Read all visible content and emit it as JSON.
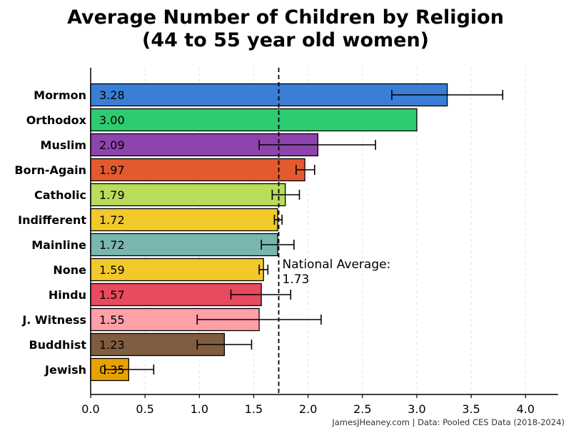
{
  "chart_data": {
    "type": "bar",
    "orientation": "horizontal",
    "title_line1": "Average Number of Children by Religion",
    "title_line2": "(44 to 55 year old women)",
    "categories": [
      "Mormon",
      "Orthodox",
      "Muslim",
      "Born-Again",
      "Catholic",
      "Indifferent",
      "Mainline",
      "None",
      "Hindu",
      "J. Witness",
      "Buddhist",
      "Jewish"
    ],
    "values": [
      3.28,
      3.0,
      2.09,
      1.97,
      1.79,
      1.72,
      1.72,
      1.59,
      1.57,
      1.55,
      1.23,
      0.35
    ],
    "value_labels": [
      "3.28",
      "3.00",
      "2.09",
      "1.97",
      "1.79",
      "1.72",
      "1.72",
      "1.59",
      "1.57",
      "1.55",
      "1.23",
      "0.35"
    ],
    "error_low": [
      2.77,
      3.0,
      1.55,
      1.89,
      1.67,
      1.69,
      1.57,
      1.55,
      1.29,
      0.98,
      0.98,
      0.13
    ],
    "error_high": [
      3.79,
      3.0,
      2.62,
      2.06,
      1.92,
      1.76,
      1.87,
      1.63,
      1.84,
      2.12,
      1.48,
      0.58
    ],
    "colors": [
      "#3a7fd5",
      "#2ecc71",
      "#8e44ad",
      "#e35a2e",
      "#b9dc5a",
      "#f1c92a",
      "#79b6ae",
      "#f1c92a",
      "#e84a5f",
      "#ff9fa8",
      "#805d40",
      "#e8a200"
    ],
    "xlim": [
      0,
      4.3
    ],
    "xticks": [
      "0.0",
      "0.5",
      "1.0",
      "1.5",
      "2.0",
      "2.5",
      "3.0",
      "3.5",
      "4.0"
    ],
    "reference_line": {
      "value": 1.73,
      "label_line1": "National Average:",
      "label_line2": "1.73"
    },
    "grid": "vertical-dashed"
  },
  "source": "JamesJHeaney.com | Data: Pooled CES Data (2018-2024)"
}
